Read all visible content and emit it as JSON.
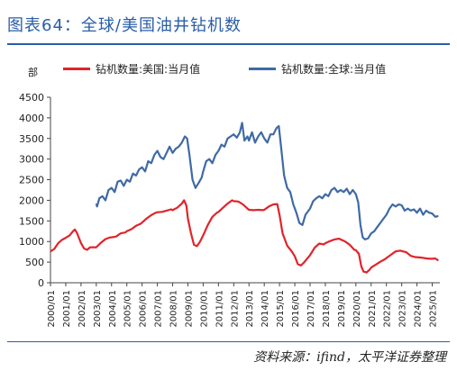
{
  "header": {
    "title": "图表64：全球/美国油井钻机数",
    "unit": "部",
    "source": "资料来源：ifind，太平洋证券整理"
  },
  "colors": {
    "title_blue": "#2a5ea8",
    "us_series": "#e0242b",
    "global_series": "#3f6aa5",
    "axis": "#444444"
  },
  "chart_data": {
    "type": "line",
    "title": "全球/美国油井钻机数",
    "ylabel": "部",
    "ylim": [
      0,
      4500
    ],
    "yticks": [
      0,
      500,
      1000,
      1500,
      2000,
      2500,
      3000,
      3500,
      4000,
      4500
    ],
    "xlim": [
      2000.0,
      2025.5
    ],
    "xticks": [
      "2000/01",
      "2001/01",
      "2002/01",
      "2003/01",
      "2004/01",
      "2005/01",
      "2006/01",
      "2007/01",
      "2008/01",
      "2009/01",
      "2010/01",
      "2011/01",
      "2012/01",
      "2013/01",
      "2014/01",
      "2015/01",
      "2016/01",
      "2017/01",
      "2018/01",
      "2019/01",
      "2020/01",
      "2021/01",
      "2022/01",
      "2023/01",
      "2024/01",
      "2025/01"
    ],
    "grid": false,
    "legend_position": "top",
    "series": [
      {
        "name": "钻机数量:美国:当月值",
        "color": "#e0242b",
        "points": [
          [
            2000.0,
            760
          ],
          [
            2000.25,
            820
          ],
          [
            2000.5,
            960
          ],
          [
            2000.75,
            1040
          ],
          [
            2001.0,
            1090
          ],
          [
            2001.25,
            1150
          ],
          [
            2001.5,
            1260
          ],
          [
            2001.6,
            1290
          ],
          [
            2001.75,
            1200
          ],
          [
            2002.0,
            960
          ],
          [
            2002.2,
            830
          ],
          [
            2002.4,
            800
          ],
          [
            2002.6,
            860
          ],
          [
            2002.8,
            860
          ],
          [
            2003.0,
            860
          ],
          [
            2003.3,
            970
          ],
          [
            2003.6,
            1060
          ],
          [
            2003.9,
            1100
          ],
          [
            2004.0,
            1100
          ],
          [
            2004.3,
            1120
          ],
          [
            2004.6,
            1200
          ],
          [
            2004.9,
            1220
          ],
          [
            2005.0,
            1250
          ],
          [
            2005.3,
            1300
          ],
          [
            2005.6,
            1380
          ],
          [
            2005.9,
            1430
          ],
          [
            2006.0,
            1460
          ],
          [
            2006.3,
            1560
          ],
          [
            2006.6,
            1640
          ],
          [
            2006.9,
            1700
          ],
          [
            2007.0,
            1710
          ],
          [
            2007.3,
            1720
          ],
          [
            2007.6,
            1750
          ],
          [
            2007.9,
            1780
          ],
          [
            2008.0,
            1760
          ],
          [
            2008.3,
            1820
          ],
          [
            2008.6,
            1920
          ],
          [
            2008.75,
            2000
          ],
          [
            2008.9,
            1870
          ],
          [
            2009.0,
            1550
          ],
          [
            2009.2,
            1200
          ],
          [
            2009.4,
            920
          ],
          [
            2009.6,
            890
          ],
          [
            2009.8,
            1000
          ],
          [
            2010.0,
            1150
          ],
          [
            2010.3,
            1400
          ],
          [
            2010.6,
            1600
          ],
          [
            2010.9,
            1700
          ],
          [
            2011.0,
            1720
          ],
          [
            2011.3,
            1820
          ],
          [
            2011.6,
            1920
          ],
          [
            2011.9,
            2000
          ],
          [
            2012.0,
            1980
          ],
          [
            2012.3,
            1970
          ],
          [
            2012.6,
            1900
          ],
          [
            2012.9,
            1800
          ],
          [
            2013.0,
            1770
          ],
          [
            2013.3,
            1760
          ],
          [
            2013.6,
            1770
          ],
          [
            2013.9,
            1760
          ],
          [
            2014.0,
            1770
          ],
          [
            2014.3,
            1850
          ],
          [
            2014.6,
            1900
          ],
          [
            2014.85,
            1910
          ],
          [
            2015.0,
            1650
          ],
          [
            2015.2,
            1200
          ],
          [
            2015.5,
            900
          ],
          [
            2015.8,
            760
          ],
          [
            2016.0,
            640
          ],
          [
            2016.2,
            450
          ],
          [
            2016.4,
            420
          ],
          [
            2016.6,
            490
          ],
          [
            2016.8,
            580
          ],
          [
            2017.0,
            670
          ],
          [
            2017.3,
            850
          ],
          [
            2017.6,
            950
          ],
          [
            2017.9,
            930
          ],
          [
            2018.0,
            960
          ],
          [
            2018.3,
            1010
          ],
          [
            2018.6,
            1050
          ],
          [
            2018.9,
            1070
          ],
          [
            2019.0,
            1050
          ],
          [
            2019.3,
            1000
          ],
          [
            2019.6,
            920
          ],
          [
            2019.9,
            800
          ],
          [
            2020.0,
            790
          ],
          [
            2020.2,
            700
          ],
          [
            2020.35,
            400
          ],
          [
            2020.5,
            270
          ],
          [
            2020.7,
            250
          ],
          [
            2020.9,
            320
          ],
          [
            2021.0,
            370
          ],
          [
            2021.3,
            440
          ],
          [
            2021.6,
            510
          ],
          [
            2021.9,
            570
          ],
          [
            2022.0,
            600
          ],
          [
            2022.3,
            680
          ],
          [
            2022.6,
            760
          ],
          [
            2022.9,
            780
          ],
          [
            2023.0,
            770
          ],
          [
            2023.3,
            740
          ],
          [
            2023.6,
            650
          ],
          [
            2023.9,
            620
          ],
          [
            2024.0,
            620
          ],
          [
            2024.3,
            610
          ],
          [
            2024.6,
            590
          ],
          [
            2024.9,
            580
          ],
          [
            2025.0,
            580
          ],
          [
            2025.2,
            590
          ],
          [
            2025.4,
            540
          ]
        ]
      },
      {
        "name": "钻机数量:全球:当月值",
        "color": "#3f6aa5",
        "points": [
          [
            2003.0,
            1920
          ],
          [
            2003.05,
            1850
          ],
          [
            2003.2,
            2050
          ],
          [
            2003.4,
            2100
          ],
          [
            2003.6,
            2000
          ],
          [
            2003.8,
            2250
          ],
          [
            2004.0,
            2300
          ],
          [
            2004.2,
            2200
          ],
          [
            2004.4,
            2450
          ],
          [
            2004.6,
            2480
          ],
          [
            2004.8,
            2350
          ],
          [
            2005.0,
            2500
          ],
          [
            2005.2,
            2450
          ],
          [
            2005.4,
            2650
          ],
          [
            2005.6,
            2600
          ],
          [
            2005.8,
            2750
          ],
          [
            2006.0,
            2800
          ],
          [
            2006.2,
            2700
          ],
          [
            2006.4,
            2950
          ],
          [
            2006.6,
            2900
          ],
          [
            2006.8,
            3100
          ],
          [
            2007.0,
            3200
          ],
          [
            2007.2,
            3050
          ],
          [
            2007.4,
            3000
          ],
          [
            2007.6,
            3150
          ],
          [
            2007.8,
            3300
          ],
          [
            2008.0,
            3150
          ],
          [
            2008.2,
            3250
          ],
          [
            2008.4,
            3300
          ],
          [
            2008.6,
            3400
          ],
          [
            2008.8,
            3550
          ],
          [
            2008.95,
            3500
          ],
          [
            2009.1,
            3100
          ],
          [
            2009.3,
            2500
          ],
          [
            2009.5,
            2300
          ],
          [
            2009.7,
            2420
          ],
          [
            2009.9,
            2550
          ],
          [
            2010.0,
            2700
          ],
          [
            2010.2,
            2950
          ],
          [
            2010.4,
            3000
          ],
          [
            2010.6,
            2900
          ],
          [
            2010.8,
            3100
          ],
          [
            2011.0,
            3200
          ],
          [
            2011.2,
            3350
          ],
          [
            2011.4,
            3300
          ],
          [
            2011.6,
            3500
          ],
          [
            2011.8,
            3550
          ],
          [
            2012.0,
            3600
          ],
          [
            2012.2,
            3520
          ],
          [
            2012.4,
            3650
          ],
          [
            2012.55,
            3880
          ],
          [
            2012.7,
            3450
          ],
          [
            2012.9,
            3550
          ],
          [
            2013.0,
            3450
          ],
          [
            2013.2,
            3650
          ],
          [
            2013.4,
            3400
          ],
          [
            2013.6,
            3550
          ],
          [
            2013.8,
            3650
          ],
          [
            2014.0,
            3500
          ],
          [
            2014.2,
            3400
          ],
          [
            2014.4,
            3600
          ],
          [
            2014.6,
            3600
          ],
          [
            2014.8,
            3750
          ],
          [
            2014.95,
            3800
          ],
          [
            2015.1,
            3300
          ],
          [
            2015.3,
            2600
          ],
          [
            2015.5,
            2300
          ],
          [
            2015.7,
            2200
          ],
          [
            2015.9,
            1900
          ],
          [
            2016.1,
            1700
          ],
          [
            2016.3,
            1450
          ],
          [
            2016.5,
            1400
          ],
          [
            2016.7,
            1650
          ],
          [
            2016.9,
            1750
          ],
          [
            2017.0,
            1800
          ],
          [
            2017.2,
            1980
          ],
          [
            2017.4,
            2050
          ],
          [
            2017.6,
            2100
          ],
          [
            2017.8,
            2050
          ],
          [
            2018.0,
            2150
          ],
          [
            2018.2,
            2100
          ],
          [
            2018.4,
            2250
          ],
          [
            2018.6,
            2300
          ],
          [
            2018.8,
            2200
          ],
          [
            2019.0,
            2250
          ],
          [
            2019.2,
            2200
          ],
          [
            2019.4,
            2280
          ],
          [
            2019.6,
            2150
          ],
          [
            2019.8,
            2250
          ],
          [
            2020.0,
            2150
          ],
          [
            2020.15,
            1950
          ],
          [
            2020.3,
            1400
          ],
          [
            2020.45,
            1100
          ],
          [
            2020.6,
            1050
          ],
          [
            2020.8,
            1080
          ],
          [
            2021.0,
            1200
          ],
          [
            2021.2,
            1250
          ],
          [
            2021.4,
            1350
          ],
          [
            2021.6,
            1450
          ],
          [
            2021.8,
            1550
          ],
          [
            2022.0,
            1650
          ],
          [
            2022.2,
            1800
          ],
          [
            2022.4,
            1900
          ],
          [
            2022.6,
            1850
          ],
          [
            2022.8,
            1900
          ],
          [
            2023.0,
            1880
          ],
          [
            2023.2,
            1750
          ],
          [
            2023.4,
            1800
          ],
          [
            2023.6,
            1750
          ],
          [
            2023.8,
            1780
          ],
          [
            2024.0,
            1700
          ],
          [
            2024.2,
            1800
          ],
          [
            2024.4,
            1650
          ],
          [
            2024.6,
            1750
          ],
          [
            2024.8,
            1700
          ],
          [
            2025.0,
            1680
          ],
          [
            2025.2,
            1600
          ],
          [
            2025.4,
            1620
          ]
        ]
      }
    ]
  }
}
